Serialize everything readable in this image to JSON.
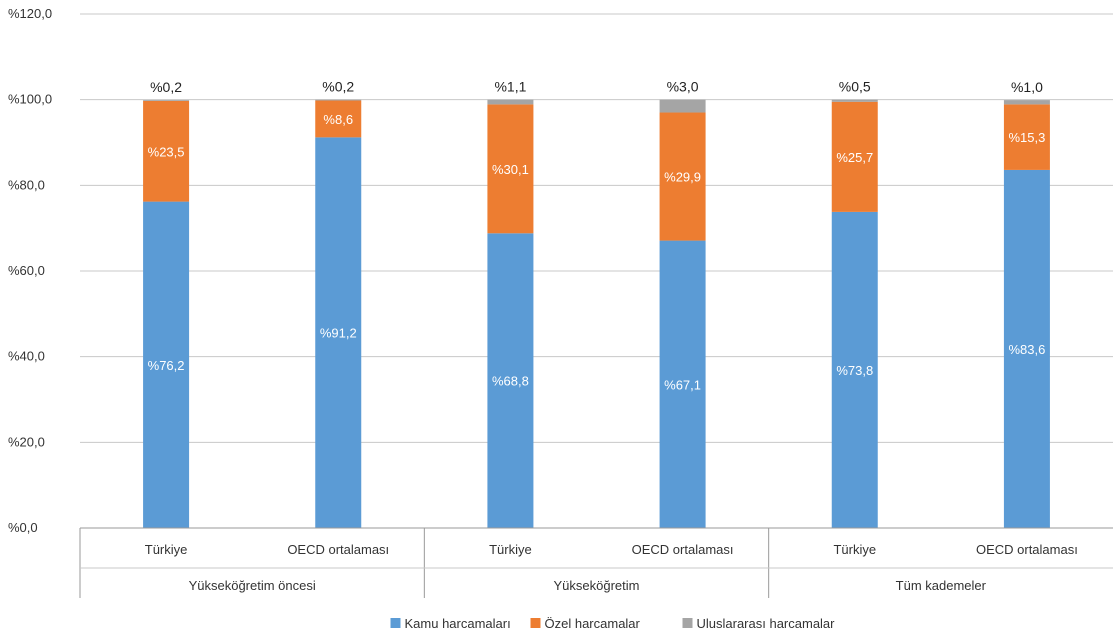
{
  "chart_data": {
    "type": "bar",
    "stacked": true,
    "ylim": [
      0,
      120
    ],
    "yticks": [
      "%0,0",
      "%20,0",
      "%40,0",
      "%60,0",
      "%80,0",
      "%100,0",
      "%120,0"
    ],
    "categories": [
      "Türkiye",
      "OECD ortalaması",
      "Türkiye",
      "OECD ortalaması",
      "Türkiye",
      "OECD ortalaması"
    ],
    "groups": [
      {
        "label": "Yükseköğretim öncesi",
        "span": 2
      },
      {
        "label": "Yükseköğretim",
        "span": 2
      },
      {
        "label": "Tüm kademeler",
        "span": 2
      }
    ],
    "series": [
      {
        "name": "Kamu harcamaları",
        "color": "#5b9bd5",
        "values": [
          76.2,
          91.2,
          68.8,
          67.1,
          73.8,
          83.6
        ],
        "labels": [
          "%76,2",
          "%91,2",
          "%68,8",
          "%67,1",
          "%73,8",
          "%83,6"
        ]
      },
      {
        "name": "Özel harcamalar",
        "color": "#ed7d31",
        "values": [
          23.5,
          8.6,
          30.1,
          29.9,
          25.7,
          15.3
        ],
        "labels": [
          "%23,5",
          "%8,6",
          "%30,1",
          "%29,9",
          "%25,7",
          "%15,3"
        ]
      },
      {
        "name": "Uluslararası harcamalar",
        "color": "#a5a5a5",
        "values": [
          0.2,
          0.2,
          1.1,
          3.0,
          0.5,
          1.0
        ],
        "labels": [
          "%0,2",
          "%0,2",
          "%1,1",
          "%3,0",
          "%0,5",
          "%1,0"
        ]
      }
    ],
    "legend_position": "bottom",
    "grid": true
  }
}
